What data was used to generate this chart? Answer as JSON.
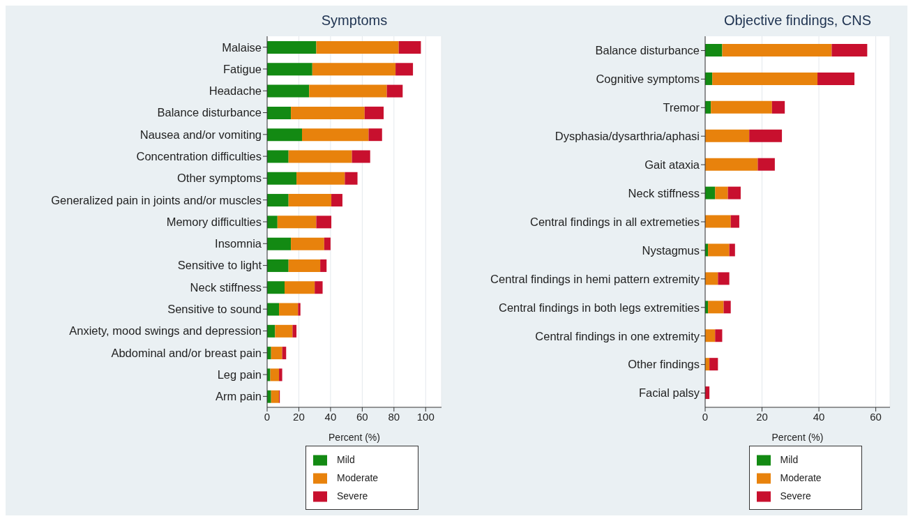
{
  "chart_data": [
    {
      "type": "bar",
      "orientation": "horizontal",
      "stacked": true,
      "title": "Symptoms",
      "xlabel": "Percent (%)",
      "categories": [
        "Malaise",
        "Fatigue",
        "Headache",
        "Balance disturbance",
        "Nausea and/or vomiting",
        "Concentration difficulties",
        "Other symptoms",
        "Generalized pain in joints and/or muscles",
        "Memory difficulties",
        "Insomnia",
        "Sensitive to light",
        "Neck stiffness",
        "Sensitive to sound",
        "Anxiety, mood swings and depression",
        "Abdominal and/or breast pain",
        "Leg pain",
        "Arm pain"
      ],
      "series": [
        {
          "name": "Mild",
          "color": "#138a13",
          "values": [
            31,
            28.5,
            26.5,
            15,
            22,
            13.5,
            18.5,
            13.5,
            6.5,
            15,
            13.5,
            11,
            7.5,
            5,
            2.5,
            2,
            2.5
          ]
        },
        {
          "name": "Moderate",
          "color": "#e8820c",
          "values": [
            52,
            52.5,
            49,
            46.5,
            42,
            40,
            30.5,
            27,
            24.5,
            21,
            20,
            19,
            12,
            11,
            7,
            5.5,
            5
          ]
        },
        {
          "name": "Severe",
          "color": "#c8102e",
          "values": [
            14,
            11,
            10,
            12,
            8.5,
            11.5,
            8,
            7,
            9.5,
            4,
            4,
            5,
            1.5,
            2.5,
            2.5,
            2,
            0.5
          ]
        }
      ],
      "xlim": [
        0,
        110
      ],
      "xticks": [
        0,
        20,
        40,
        60,
        80,
        100
      ],
      "grid": "x",
      "legend": "bottom"
    },
    {
      "type": "bar",
      "orientation": "horizontal",
      "stacked": true,
      "title": "Objective findings, CNS",
      "xlabel": "Percent (%)",
      "categories": [
        "Balance disturbance",
        "Cognitive symptoms",
        "Tremor",
        "Dysphasia/dysarthria/aphasi",
        "Gait ataxia",
        "Neck stiffness",
        "Central findings in all extremeties",
        "Nystagmus",
        "Central findings in hemi pattern extremity",
        "Central findings in both legs extremities",
        "Central findings in one extremity",
        "Other findings",
        "Facial palsy"
      ],
      "series": [
        {
          "name": "Mild",
          "color": "#138a13",
          "values": [
            6,
            2.5,
            2,
            0,
            0,
            3.5,
            0,
            1,
            0,
            1,
            0,
            0,
            0
          ]
        },
        {
          "name": "Moderate",
          "color": "#e8820c",
          "values": [
            38.5,
            37,
            21.5,
            15.5,
            18.5,
            4.5,
            9,
            7.5,
            4.5,
            5.5,
            3.5,
            1.5,
            0
          ]
        },
        {
          "name": "Severe",
          "color": "#c8102e",
          "values": [
            12.5,
            13,
            4.5,
            11.5,
            6,
            4.5,
            3,
            2,
            4,
            2.5,
            2.5,
            3,
            1.5
          ]
        }
      ],
      "xlim": [
        0,
        65
      ],
      "xticks": [
        0,
        20,
        40,
        60
      ],
      "grid": "x",
      "legend": "bottom"
    }
  ]
}
